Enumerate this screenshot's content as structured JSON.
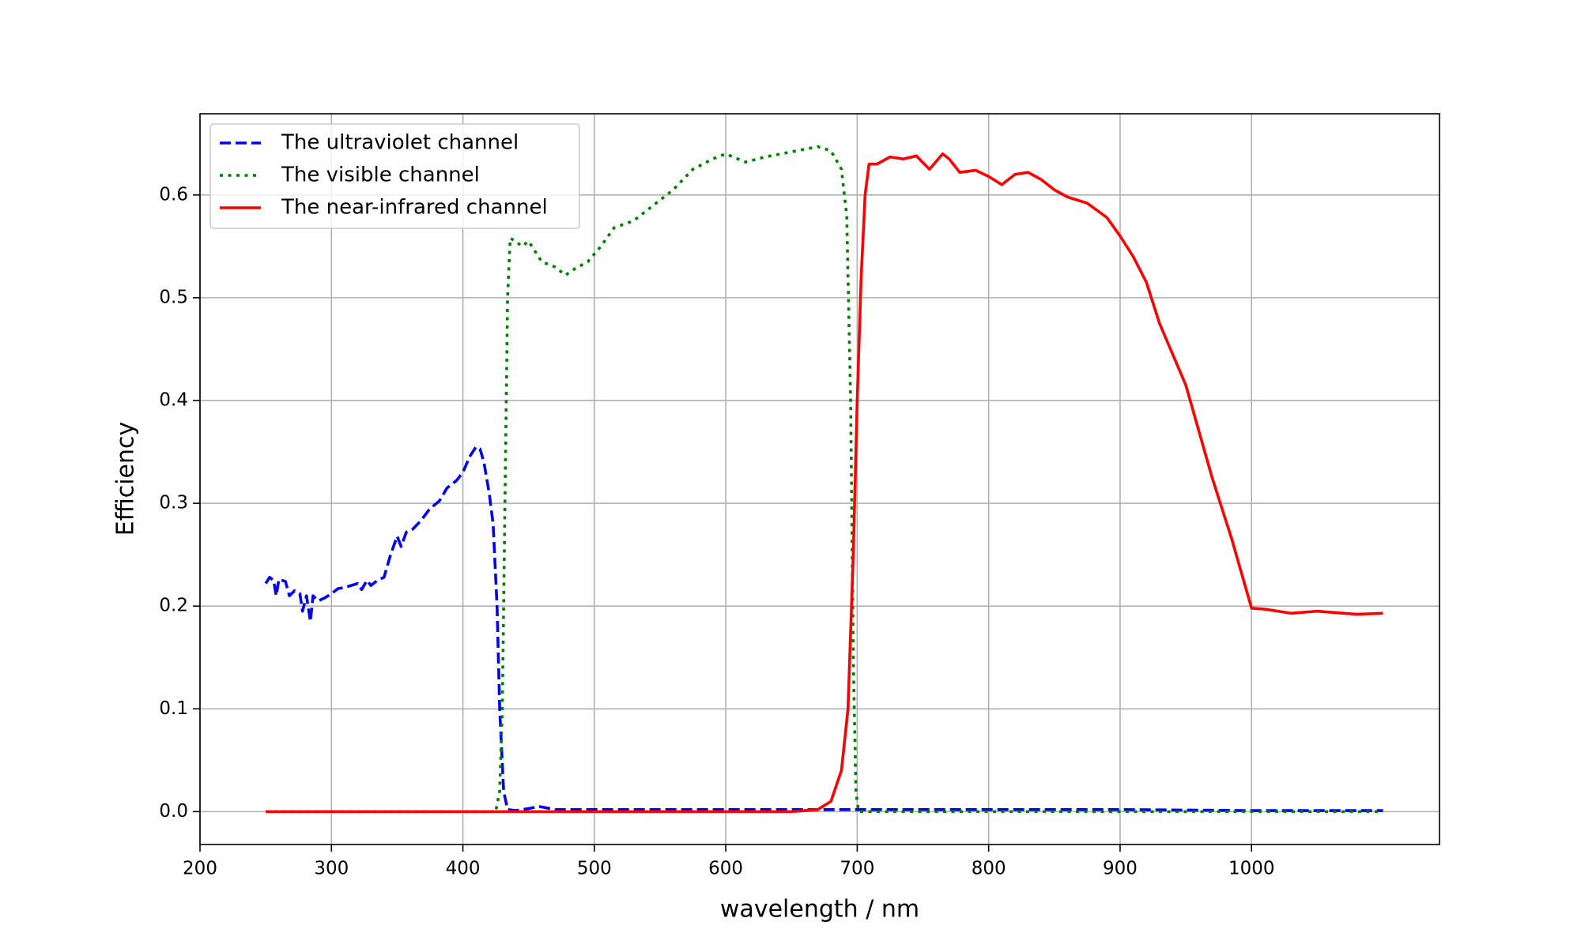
{
  "chart_data": {
    "type": "line",
    "xlabel": "wavelength / nm",
    "ylabel": "Efficiency",
    "xlim": [
      200,
      1143
    ],
    "ylim": [
      -0.032,
      0.679
    ],
    "xticks": [
      200,
      300,
      400,
      500,
      600,
      700,
      800,
      900,
      1000
    ],
    "yticks": [
      {
        "value": 0,
        "label": "0.0"
      },
      0.1,
      0.2,
      0.3,
      0.4,
      0.5,
      0.6
    ],
    "grid": true,
    "legend": "upper left",
    "series": [
      {
        "name": "The ultraviolet channel",
        "color": "#0000ff",
        "linestyle": "dashed",
        "x": [
          250,
          253,
          256,
          258,
          260,
          265,
          268,
          272,
          276,
          278,
          281,
          284,
          286,
          290,
          295,
          300,
          305,
          310,
          315,
          320,
          323,
          327,
          330,
          335,
          340,
          345,
          350,
          353,
          357,
          362,
          368,
          375,
          382,
          388,
          395,
          400,
          405,
          410,
          413,
          416,
          420,
          423,
          426,
          428,
          431,
          434,
          440,
          450,
          458,
          470,
          500,
          600,
          700,
          800,
          900,
          1000,
          1100
        ],
        "values": [
          0.222,
          0.228,
          0.225,
          0.21,
          0.226,
          0.224,
          0.21,
          0.215,
          0.212,
          0.195,
          0.21,
          0.185,
          0.21,
          0.205,
          0.208,
          0.212,
          0.217,
          0.218,
          0.22,
          0.222,
          0.216,
          0.225,
          0.22,
          0.225,
          0.228,
          0.25,
          0.268,
          0.258,
          0.272,
          0.275,
          0.283,
          0.295,
          0.302,
          0.315,
          0.322,
          0.33,
          0.345,
          0.355,
          0.353,
          0.34,
          0.31,
          0.28,
          0.2,
          0.1,
          0.02,
          0.002,
          0.001,
          0.003,
          0.005,
          0.002,
          0.002,
          0.002,
          0.002,
          0.002,
          0.002,
          0.001,
          0.001
        ]
      },
      {
        "name": "The visible channel",
        "color": "#008000",
        "linestyle": "dotted",
        "x": [
          250,
          425,
          428,
          430,
          432,
          434,
          436,
          440,
          445,
          450,
          455,
          460,
          470,
          478,
          485,
          495,
          505,
          515,
          530,
          540,
          550,
          560,
          575,
          590,
          600,
          615,
          630,
          650,
          670,
          680,
          688,
          692,
          695,
          697,
          699,
          701,
          1100
        ],
        "values": [
          0,
          0,
          0.02,
          0.1,
          0.3,
          0.5,
          0.558,
          0.555,
          0.55,
          0.555,
          0.545,
          0.535,
          0.53,
          0.522,
          0.528,
          0.535,
          0.55,
          0.568,
          0.575,
          0.585,
          0.595,
          0.605,
          0.625,
          0.635,
          0.64,
          0.632,
          0.637,
          0.642,
          0.647,
          0.643,
          0.625,
          0.58,
          0.4,
          0.15,
          0.02,
          0,
          0
        ]
      },
      {
        "name": "The near-infrared channel",
        "color": "#ff0000",
        "linestyle": "solid",
        "x": [
          250,
          650,
          670,
          680,
          688,
          693,
          697,
          700,
          703,
          706,
          709,
          715,
          725,
          735,
          745,
          755,
          765,
          770,
          778,
          790,
          800,
          810,
          820,
          830,
          840,
          850,
          860,
          875,
          890,
          900,
          910,
          920,
          930,
          940,
          950,
          960,
          970,
          985,
          1000,
          1010,
          1030,
          1050,
          1080,
          1100
        ],
        "values": [
          0,
          0,
          0.002,
          0.01,
          0.04,
          0.1,
          0.25,
          0.4,
          0.52,
          0.6,
          0.63,
          0.63,
          0.637,
          0.635,
          0.638,
          0.625,
          0.64,
          0.635,
          0.622,
          0.624,
          0.618,
          0.61,
          0.62,
          0.622,
          0.615,
          0.605,
          0.598,
          0.592,
          0.578,
          0.56,
          0.54,
          0.515,
          0.475,
          0.445,
          0.415,
          0.37,
          0.325,
          0.265,
          0.198,
          0.197,
          0.193,
          0.195,
          0.192,
          0.193
        ]
      }
    ]
  }
}
